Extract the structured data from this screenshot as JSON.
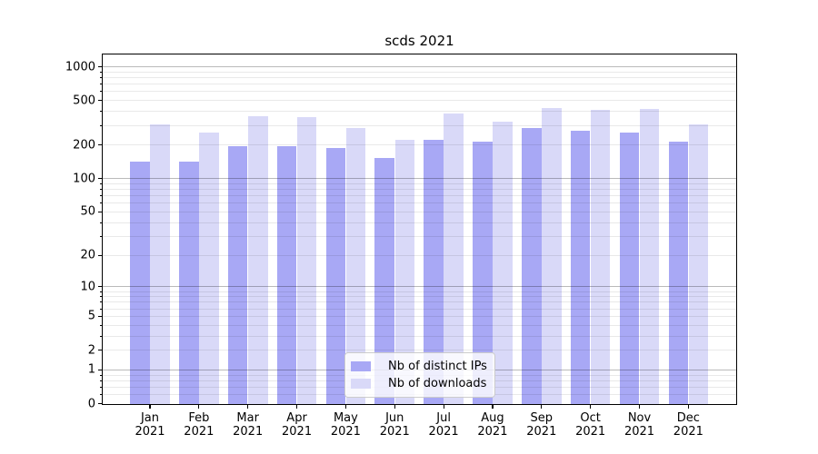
{
  "title": "scds 2021",
  "chart_data": {
    "type": "bar",
    "title": "scds 2021",
    "categories": [
      "Jan",
      "Feb",
      "Mar",
      "Apr",
      "May",
      "Jun",
      "Jul",
      "Aug",
      "Sep",
      "Oct",
      "Nov",
      "Dec"
    ],
    "category_year": "2021",
    "series": [
      {
        "name": "Nb of distinct IPs",
        "color": "#a8a8f5",
        "values": [
          142,
          142,
          195,
          195,
          189,
          152,
          224,
          214,
          287,
          268,
          257,
          213
        ]
      },
      {
        "name": "Nb of downloads",
        "color": "#d9d9f8",
        "values": [
          307,
          261,
          364,
          357,
          285,
          225,
          386,
          325,
          427,
          413,
          422,
          306
        ]
      }
    ],
    "yscale": "log1p",
    "y_tick_values": [
      1000,
      500,
      200,
      100,
      50,
      20,
      10,
      5,
      2,
      1,
      0
    ],
    "ylim": [
      0,
      1300
    ],
    "grid": true,
    "legend_position": "lower center"
  },
  "colors": {
    "bar_distinct_ips": "#a8a8f5",
    "bar_downloads": "#d9d9f8",
    "axis": "#000000",
    "major_grid": "rgba(0,0,0,0.27)",
    "minor_grid": "rgba(0,0,0,0.085)"
  }
}
